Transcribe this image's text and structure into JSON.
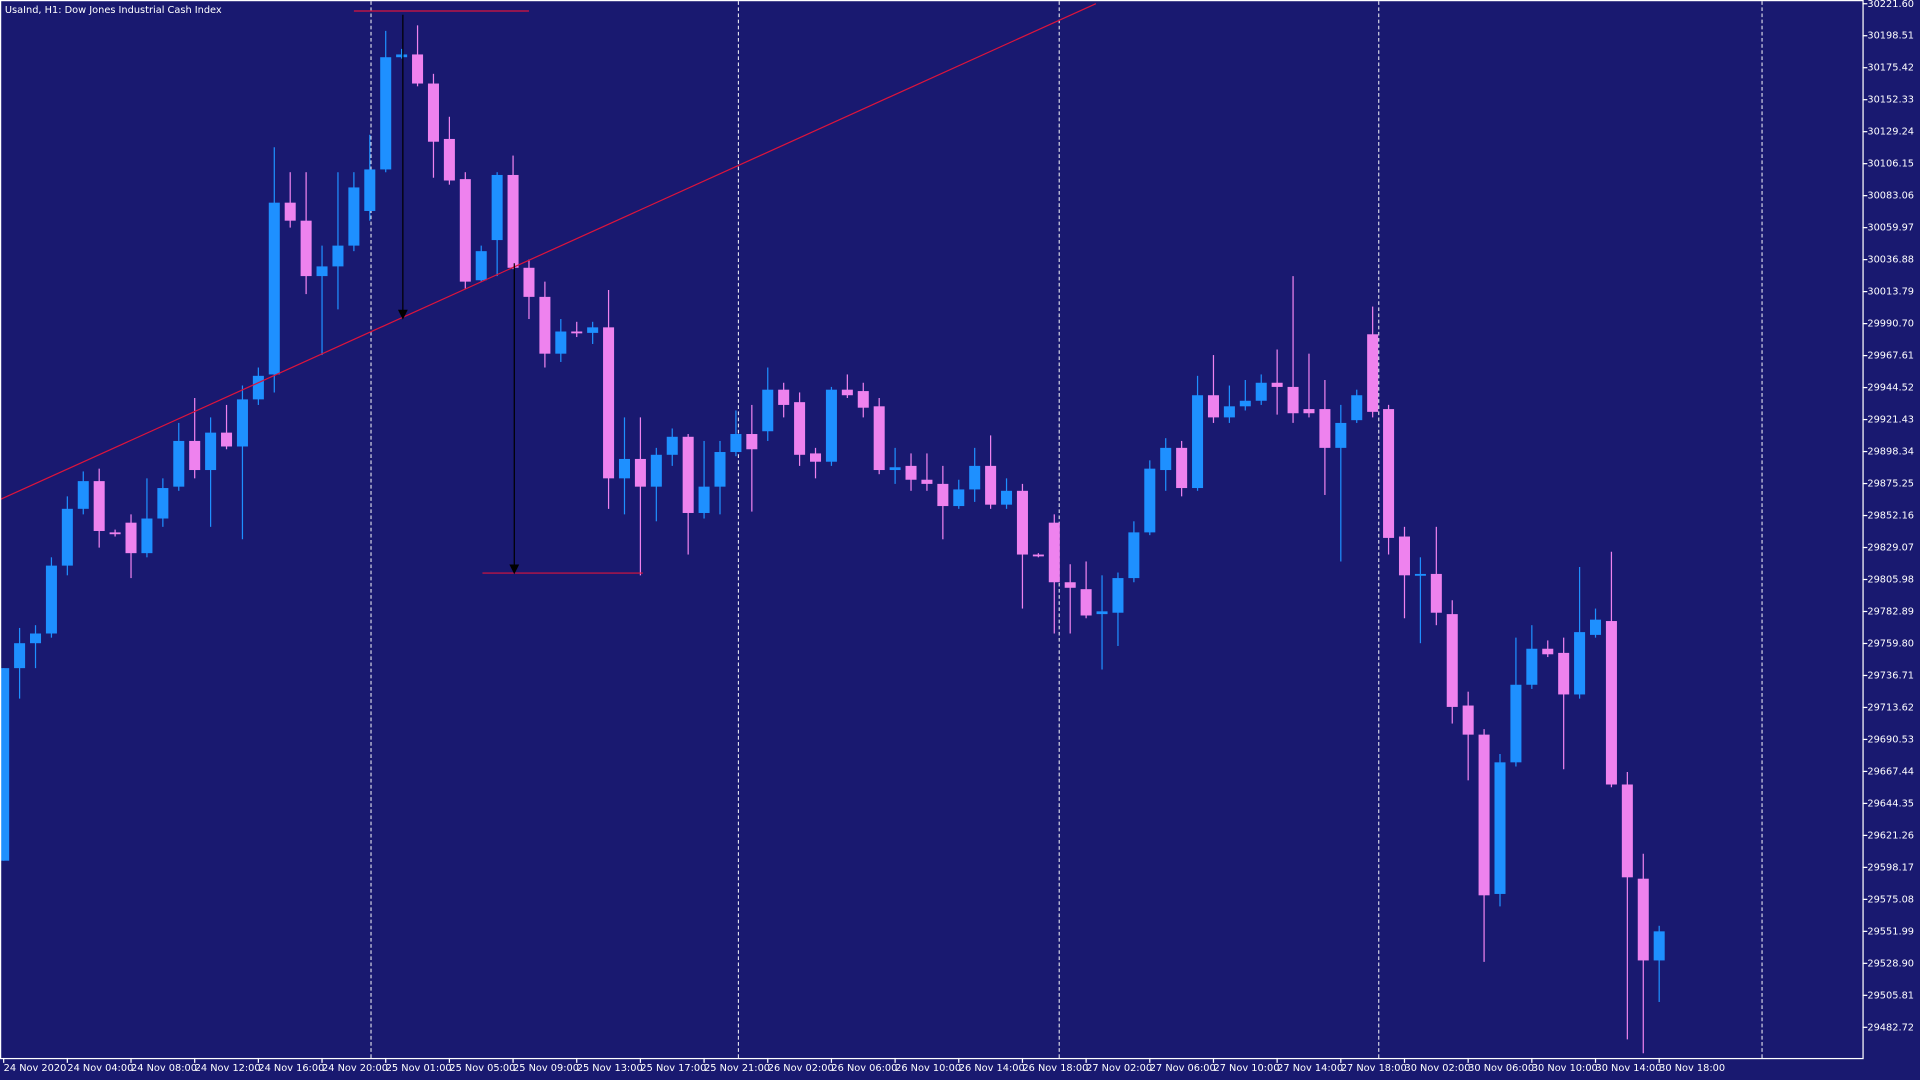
{
  "chart_data": {
    "type": "candlestick",
    "title": "UsaInd, H1:  Dow Jones Industrial Cash Index",
    "up_color": "#1e90ff",
    "down_color": "#ee82ee",
    "categories": [
      "24 Nov 2020",
      null,
      null,
      null,
      "24 Nov 04:00",
      null,
      null,
      null,
      "24 Nov 08:00",
      null,
      null,
      null,
      "24 Nov 12:00",
      null,
      null,
      null,
      "24 Nov 16:00",
      null,
      null,
      null,
      "24 Nov 20:00",
      null,
      null,
      null,
      "25 Nov 01:00",
      null,
      null,
      null,
      "25 Nov 05:00",
      null,
      null,
      null,
      "25 Nov 09:00",
      null,
      null,
      null,
      "25 Nov 13:00",
      null,
      null,
      null,
      "25 Nov 17:00",
      null,
      null,
      null,
      "25 Nov 21:00",
      null,
      null,
      null,
      "26 Nov 02:00",
      null,
      null,
      null,
      "26 Nov 06:00",
      null,
      null,
      null,
      "26 Nov 10:00",
      null,
      null,
      null,
      "26 Nov 14:00",
      null,
      null,
      null,
      "26 Nov 18:00",
      null,
      null,
      null,
      "27 Nov 02:00",
      null,
      null,
      null,
      "27 Nov 06:00",
      null,
      null,
      null,
      "27 Nov 10:00",
      null,
      null,
      null,
      "27 Nov 14:00",
      null,
      null,
      null,
      "27 Nov 18:00",
      null,
      null,
      null,
      "30 Nov 02:00",
      null,
      null,
      null,
      "30 Nov 06:00",
      null,
      null,
      null,
      "30 Nov 10:00",
      null,
      null,
      null,
      "30 Nov 14:00",
      null,
      null,
      null,
      "30 Nov 18:00"
    ],
    "open": [
      29603,
      29742,
      29760,
      29767,
      29816,
      29857,
      29877,
      29840,
      29847,
      29825,
      29850,
      29873,
      29906,
      29885,
      29912,
      29902,
      29936,
      29954,
      30078,
      30065,
      30025,
      30032,
      30047,
      30072,
      30102,
      30183,
      30185,
      30164,
      30124,
      30095,
      30022,
      30051,
      30098,
      30031,
      30010,
      29969,
      29985,
      29984,
      29988,
      29879,
      29893,
      29873,
      29896,
      29909,
      29854,
      29873,
      29898,
      29911,
      29913,
      29943,
      29934,
      29897,
      29891,
      29943,
      29942,
      29931,
      29885,
      29888,
      29878,
      29875,
      29859,
      29871,
      29888,
      29860,
      29870,
      29824,
      29847,
      29804,
      29799,
      29781,
      29782,
      29807,
      29840,
      29885,
      29901,
      29872,
      29939,
      29923,
      29931,
      29935,
      29948,
      29945,
      29929,
      29929,
      29901,
      29921,
      29983,
      29929,
      29837,
      29809,
      29810,
      29781,
      29715,
      29694,
      29579,
      29674,
      29730,
      29756,
      29753,
      29723,
      29766,
      29776,
      29658,
      29590,
      29531
    ],
    "high": [
      29742,
      29771,
      29773,
      29822,
      29866,
      29884,
      29886,
      29842,
      29853,
      29879,
      29879,
      29919,
      29937,
      29923,
      29932,
      29946,
      29959,
      30118,
      30100,
      30100,
      30047,
      30100,
      30100,
      30127,
      30202,
      30189,
      30206,
      30171,
      30140,
      30100,
      30047,
      30100,
      30112,
      30037,
      30021,
      29994,
      29992,
      29992,
      30015,
      29923,
      29923,
      29901,
      29915,
      29911,
      29906,
      29906,
      29928,
      29932,
      29959,
      29948,
      29941,
      29901,
      29945,
      29954,
      29948,
      29937,
      29901,
      29897,
      29897,
      29888,
      29878,
      29901,
      29910,
      29879,
      29875,
      29825,
      29853,
      29817,
      29819,
      29809,
      29811,
      29848,
      29892,
      29908,
      29906,
      29953,
      29968,
      29946,
      29950,
      29954,
      29972,
      30025,
      29969,
      29950,
      29932,
      29943,
      30003,
      29932,
      29844,
      29822,
      29844,
      29791,
      29725,
      29698,
      29680,
      29764,
      29773,
      29762,
      29764,
      29815,
      29785,
      29826,
      29667,
      29608,
      29556
    ],
    "low": [
      29603,
      29720,
      29742,
      29764,
      29809,
      29853,
      29829,
      29837,
      29807,
      29822,
      29844,
      29870,
      29879,
      29844,
      29900,
      29835,
      29932,
      29941,
      30060,
      30012,
      29968,
      30001,
      30043,
      30065,
      30100,
      30182,
      30162,
      30096,
      30091,
      30016,
      30021,
      30025,
      30030,
      29994,
      29959,
      29963,
      29981,
      29976,
      29857,
      29853,
      29809,
      29848,
      29888,
      29824,
      29850,
      29853,
      29895,
      29855,
      29906,
      29923,
      29888,
      29879,
      29888,
      29937,
      29923,
      29882,
      29875,
      29870,
      29870,
      29835,
      29857,
      29862,
      29857,
      29857,
      29785,
      29822,
      29767,
      29767,
      29778,
      29741,
      29758,
      29804,
      29838,
      29870,
      29866,
      29870,
      29919,
      29919,
      29928,
      29932,
      29925,
      29919,
      29923,
      29867,
      29819,
      29919,
      29923,
      29824,
      29778,
      29760,
      29773,
      29702,
      29661,
      29530,
      29570,
      29671,
      29727,
      29750,
      29669,
      29720,
      29764,
      29656,
      29474,
      29464,
      29501
    ],
    "close": [
      29742,
      29760,
      29767,
      29816,
      29857,
      29877,
      29841,
      29839,
      29825,
      29850,
      29872,
      29906,
      29885,
      29912,
      29902,
      29936,
      29953,
      30078,
      30065,
      30025,
      30032,
      30047,
      30089,
      30102,
      30183,
      30185,
      30164,
      30122,
      30094,
      30021,
      30043,
      30098,
      30031,
      30010,
      29969,
      29985,
      29984,
      29988,
      29879,
      29893,
      29873,
      29896,
      29909,
      29854,
      29873,
      29898,
      29911,
      29900,
      29943,
      29932,
      29896,
      29891,
      29943,
      29939,
      29930,
      29885,
      29887,
      29878,
      29875,
      29859,
      29871,
      29888,
      29860,
      29870,
      29824,
      29823,
      29804,
      29800,
      29780,
      29783,
      29807,
      29840,
      29886,
      29901,
      29872,
      29939,
      29923,
      29931,
      29935,
      29948,
      29945,
      29926,
      29926,
      29901,
      29919,
      29939,
      29927,
      29836,
      29809,
      29810,
      29782,
      29714,
      29694,
      29578,
      29674,
      29730,
      29756,
      29752,
      29723,
      29768,
      29777,
      29658,
      29591,
      29531,
      29552
    ],
    "ylim": [
      29460.6,
      30224.3
    ],
    "yticks": [
      {
        "value": 30221.6,
        "label": "30221.60"
      },
      30198.51,
      30175.42,
      30152.33,
      30129.24,
      30106.15,
      30083.06,
      30059.97,
      30036.88,
      30013.79,
      {
        "value": 29990.7,
        "label": "29990.70"
      },
      29967.61,
      29944.52,
      29921.43,
      29898.34,
      29875.25,
      29852.16,
      29829.07,
      29805.98,
      29782.89,
      {
        "value": 29759.8,
        "label": "29759.80"
      },
      29736.71,
      29713.62,
      29690.53,
      29667.44,
      29644.35,
      29621.26,
      29598.17,
      29575.08,
      29551.99,
      {
        "value": 29528.9,
        "label": "29528.90"
      },
      29505.81,
      29482.72
    ]
  }
}
